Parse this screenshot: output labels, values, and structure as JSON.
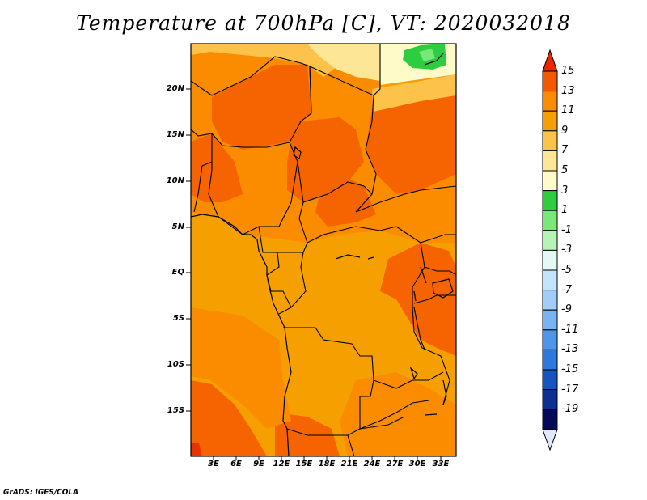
{
  "title": "Temperature at 700hPa [C], VT: 2020032018",
  "footer": "GrADS: IGES/COLA",
  "map": {
    "lat_labels": [
      "20N",
      "15N",
      "10N",
      "5N",
      "EQ",
      "5S",
      "10S",
      "15S"
    ],
    "lon_labels": [
      "3E",
      "6E",
      "9E",
      "12E",
      "15E",
      "18E",
      "21E",
      "24E",
      "27E",
      "30E",
      "33E"
    ],
    "fill_colors": {
      "8": "#f5a000",
      "10": "#fb8c00",
      "12": "#f56400",
      "14": "#e83200",
      "6": "#fcc24a",
      "4": "#fde695",
      "2": "#fefbc8",
      "0": "#2ecc40",
      "-2": "#78e878"
    }
  },
  "colorbar": {
    "labels": [
      "15",
      "13",
      "11",
      "9",
      "7",
      "5",
      "3",
      "1",
      "-1",
      "-3",
      "-5",
      "-7",
      "-9",
      "-11",
      "-13",
      "-15",
      "-17",
      "-19"
    ],
    "colors": [
      "#e82600",
      "#f55800",
      "#fb8c00",
      "#f5a000",
      "#fcc24a",
      "#fde695",
      "#fefbc8",
      "#2ecc40",
      "#78e878",
      "#b4f4b4",
      "#e4f8f6",
      "#c4e4fb",
      "#a0cef8",
      "#78b4f2",
      "#4e96ea",
      "#2c78de",
      "#1654c0",
      "#0a3092",
      "#040a5a"
    ],
    "top_arrow_color": "#e82600",
    "bottom_arrow_color": "#e0e8fa"
  }
}
